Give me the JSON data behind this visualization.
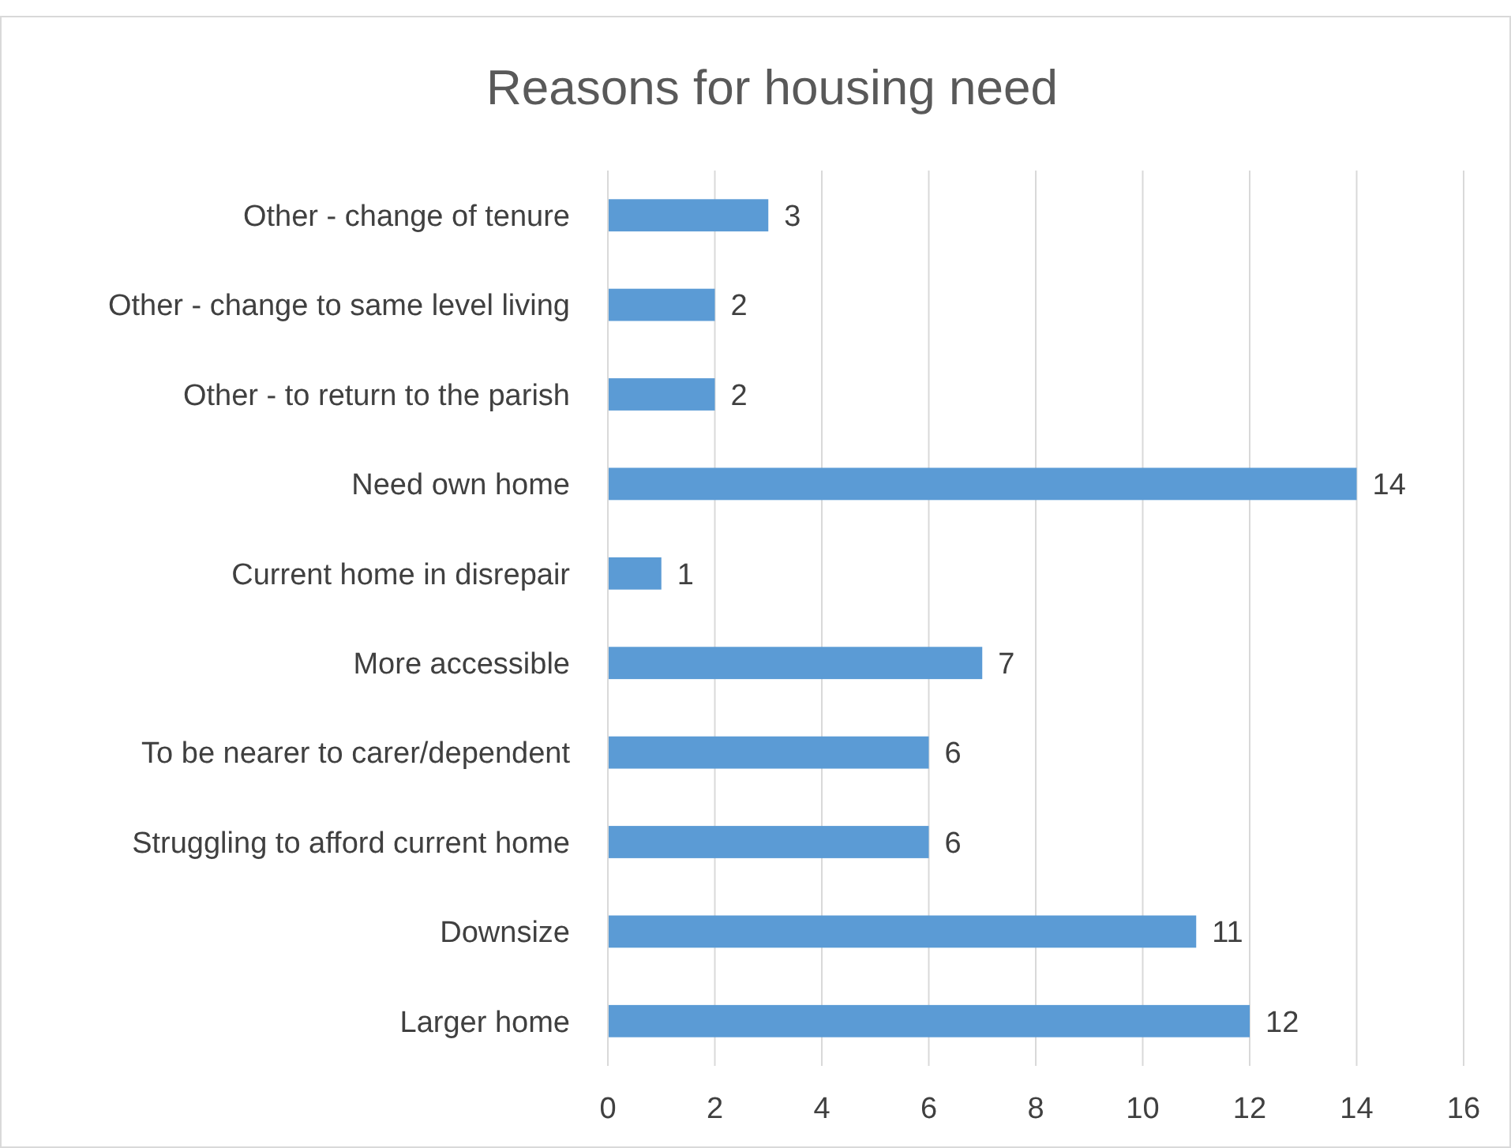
{
  "chart_data": {
    "type": "bar",
    "orientation": "horizontal",
    "title": "Reasons for housing need",
    "categories": [
      "Other - change of tenure",
      "Other - change to same level living",
      "Other - to return to the parish",
      "Need own home",
      "Current home in disrepair",
      "More accessible",
      "To be nearer to carer/dependent",
      "Struggling to afford current home",
      "Downsize",
      "Larger home"
    ],
    "values": [
      3,
      2,
      2,
      14,
      1,
      7,
      6,
      6,
      11,
      12
    ],
    "color": "#5b9bd5",
    "xlim": [
      0,
      16
    ],
    "xticks": [
      0,
      2,
      4,
      6,
      8,
      10,
      12,
      14,
      16
    ],
    "grid": "x",
    "data_labels": true
  }
}
